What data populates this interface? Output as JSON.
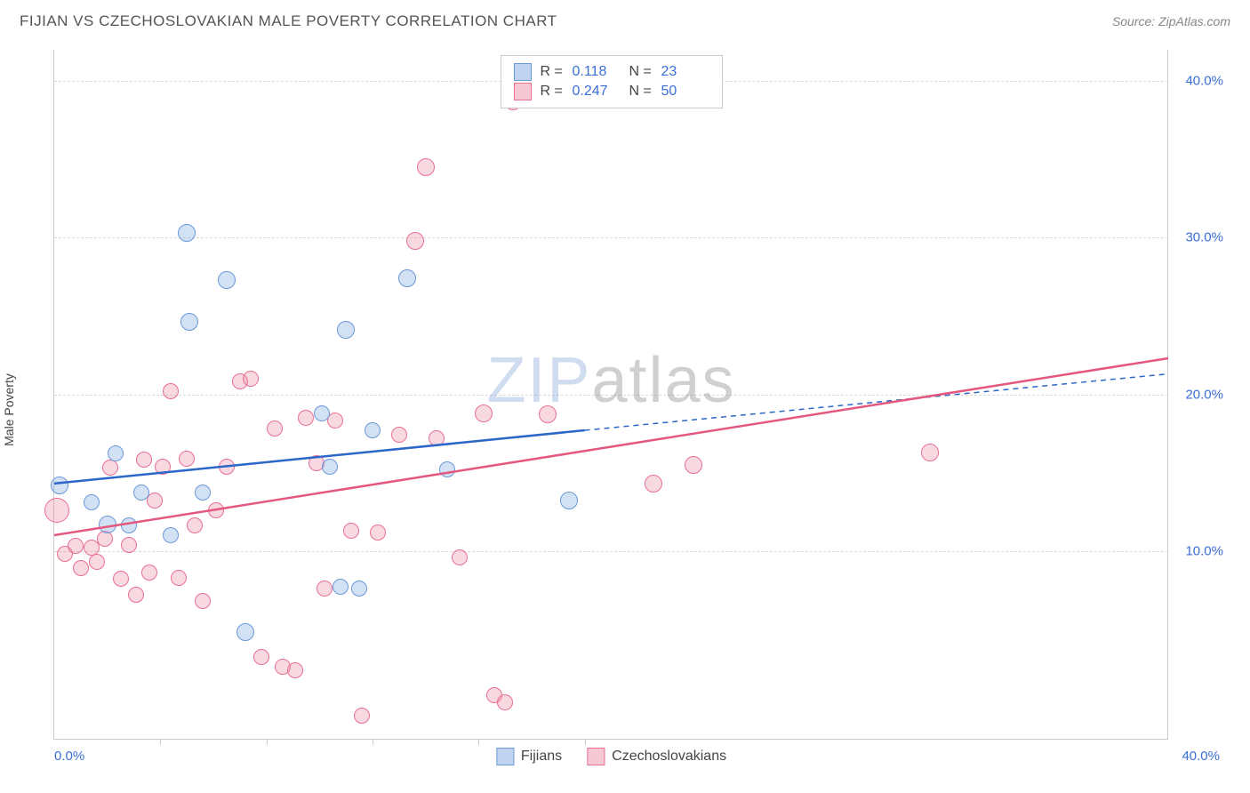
{
  "header": {
    "title": "FIJIAN VS CZECHOSLOVAKIAN MALE POVERTY CORRELATION CHART",
    "source_label": "Source: ZipAtlas.com"
  },
  "watermark": {
    "part1": "ZIP",
    "part2": "atlas"
  },
  "chart": {
    "type": "scatter",
    "ylabel": "Male Poverty",
    "x_min": 0,
    "x_max": 42,
    "y_min": -2,
    "y_max": 42,
    "y_ticks": [
      10,
      20,
      30,
      40
    ],
    "y_tick_labels": [
      "10.0%",
      "20.0%",
      "30.0%",
      "40.0%"
    ],
    "x_axis_labels": [
      {
        "pos": 0,
        "text": "0.0%",
        "anchor": "left"
      },
      {
        "pos": 40,
        "text": "40.0%",
        "anchor": "right"
      }
    ],
    "x_ticks_minor": [
      4,
      8,
      12,
      16,
      20
    ],
    "grid_color": "#d8d8d8",
    "background_color": "#ffffff",
    "series": {
      "fijians": {
        "label": "Fijians",
        "fill": "rgba(130,170,225,0.35)",
        "stroke": "#6a99d8",
        "R": "0.118",
        "N": "23",
        "trend": {
          "x1": 0,
          "y1": 14.3,
          "x2": 20,
          "y2": 17.7,
          "x2_ext": 42,
          "y2_ext": 21.3,
          "color": "#2b66c9",
          "width": 2.5
        },
        "points": [
          {
            "x": 0.2,
            "y": 14.2,
            "r": 10
          },
          {
            "x": 1.4,
            "y": 13.1,
            "r": 9
          },
          {
            "x": 2.0,
            "y": 11.7,
            "r": 10
          },
          {
            "x": 2.3,
            "y": 16.2,
            "r": 9
          },
          {
            "x": 2.8,
            "y": 11.6,
            "r": 9
          },
          {
            "x": 3.3,
            "y": 13.7,
            "r": 9
          },
          {
            "x": 4.4,
            "y": 11.0,
            "r": 9
          },
          {
            "x": 5.0,
            "y": 30.3,
            "r": 10
          },
          {
            "x": 5.1,
            "y": 24.6,
            "r": 10
          },
          {
            "x": 5.6,
            "y": 13.7,
            "r": 9
          },
          {
            "x": 6.5,
            "y": 27.3,
            "r": 10
          },
          {
            "x": 7.2,
            "y": 4.8,
            "r": 10
          },
          {
            "x": 10.1,
            "y": 18.8,
            "r": 9
          },
          {
            "x": 10.4,
            "y": 15.4,
            "r": 9
          },
          {
            "x": 10.8,
            "y": 7.7,
            "r": 9
          },
          {
            "x": 11.0,
            "y": 24.1,
            "r": 10
          },
          {
            "x": 11.5,
            "y": 7.6,
            "r": 9
          },
          {
            "x": 12.0,
            "y": 17.7,
            "r": 9
          },
          {
            "x": 13.3,
            "y": 27.4,
            "r": 10
          },
          {
            "x": 14.8,
            "y": 15.2,
            "r": 9
          },
          {
            "x": 19.4,
            "y": 13.2,
            "r": 10
          }
        ]
      },
      "czech": {
        "label": "Czechoslovakians",
        "fill": "rgba(235,145,170,0.35)",
        "stroke": "#e96f93",
        "R": "0.247",
        "N": "50",
        "trend": {
          "x1": 0,
          "y1": 11.0,
          "x2": 42,
          "y2": 22.3,
          "color": "#e4577f",
          "width": 2.5
        },
        "points": [
          {
            "x": 0.1,
            "y": 12.6,
            "r": 14
          },
          {
            "x": 0.4,
            "y": 9.8,
            "r": 9
          },
          {
            "x": 0.8,
            "y": 10.3,
            "r": 9
          },
          {
            "x": 1.0,
            "y": 8.9,
            "r": 9
          },
          {
            "x": 1.4,
            "y": 10.2,
            "r": 9
          },
          {
            "x": 1.6,
            "y": 9.3,
            "r": 9
          },
          {
            "x": 1.9,
            "y": 10.8,
            "r": 9
          },
          {
            "x": 2.1,
            "y": 15.3,
            "r": 9
          },
          {
            "x": 2.5,
            "y": 8.2,
            "r": 9
          },
          {
            "x": 2.8,
            "y": 10.4,
            "r": 9
          },
          {
            "x": 3.1,
            "y": 7.2,
            "r": 9
          },
          {
            "x": 3.4,
            "y": 15.8,
            "r": 9
          },
          {
            "x": 3.6,
            "y": 8.6,
            "r": 9
          },
          {
            "x": 3.8,
            "y": 13.2,
            "r": 9
          },
          {
            "x": 4.1,
            "y": 15.4,
            "r": 9
          },
          {
            "x": 4.4,
            "y": 20.2,
            "r": 9
          },
          {
            "x": 4.7,
            "y": 8.3,
            "r": 9
          },
          {
            "x": 5.0,
            "y": 15.9,
            "r": 9
          },
          {
            "x": 5.3,
            "y": 11.6,
            "r": 9
          },
          {
            "x": 5.6,
            "y": 6.8,
            "r": 9
          },
          {
            "x": 6.1,
            "y": 12.6,
            "r": 9
          },
          {
            "x": 6.5,
            "y": 15.4,
            "r": 9
          },
          {
            "x": 7.0,
            "y": 20.8,
            "r": 9
          },
          {
            "x": 7.4,
            "y": 21.0,
            "r": 9
          },
          {
            "x": 7.8,
            "y": 3.2,
            "r": 9
          },
          {
            "x": 8.3,
            "y": 17.8,
            "r": 9
          },
          {
            "x": 8.6,
            "y": 2.6,
            "r": 9
          },
          {
            "x": 9.1,
            "y": 2.4,
            "r": 9
          },
          {
            "x": 9.5,
            "y": 18.5,
            "r": 9
          },
          {
            "x": 9.9,
            "y": 15.6,
            "r": 9
          },
          {
            "x": 10.2,
            "y": 7.6,
            "r": 9
          },
          {
            "x": 10.6,
            "y": 18.3,
            "r": 9
          },
          {
            "x": 11.2,
            "y": 11.3,
            "r": 9
          },
          {
            "x": 11.6,
            "y": -0.5,
            "r": 9
          },
          {
            "x": 12.2,
            "y": 11.2,
            "r": 9
          },
          {
            "x": 13.0,
            "y": 17.4,
            "r": 9
          },
          {
            "x": 13.6,
            "y": 29.8,
            "r": 10
          },
          {
            "x": 14.0,
            "y": 34.5,
            "r": 10
          },
          {
            "x": 14.4,
            "y": 17.2,
            "r": 9
          },
          {
            "x": 15.3,
            "y": 9.6,
            "r": 9
          },
          {
            "x": 16.2,
            "y": 18.8,
            "r": 10
          },
          {
            "x": 16.6,
            "y": 0.8,
            "r": 9
          },
          {
            "x": 17.0,
            "y": 0.3,
            "r": 9
          },
          {
            "x": 17.3,
            "y": 38.7,
            "r": 10
          },
          {
            "x": 18.6,
            "y": 18.7,
            "r": 10
          },
          {
            "x": 22.6,
            "y": 14.3,
            "r": 10
          },
          {
            "x": 24.1,
            "y": 15.5,
            "r": 10
          },
          {
            "x": 33.0,
            "y": 16.3,
            "r": 10
          }
        ]
      }
    }
  },
  "legend_top": {
    "rows": [
      {
        "swatch_fill": "rgba(130,170,225,0.5)",
        "swatch_stroke": "#6a99d8",
        "r_label": "R =",
        "r_val": "0.118",
        "n_label": "N =",
        "n_val": "23"
      },
      {
        "swatch_fill": "rgba(235,145,170,0.5)",
        "swatch_stroke": "#e96f93",
        "r_label": "R =",
        "r_val": "0.247",
        "n_label": "N =",
        "n_val": "50"
      }
    ]
  },
  "legend_bottom": [
    {
      "swatch_fill": "rgba(130,170,225,0.5)",
      "swatch_stroke": "#6a99d8",
      "label": "Fijians"
    },
    {
      "swatch_fill": "rgba(235,145,170,0.5)",
      "swatch_stroke": "#e96f93",
      "label": "Czechoslovakians"
    }
  ]
}
